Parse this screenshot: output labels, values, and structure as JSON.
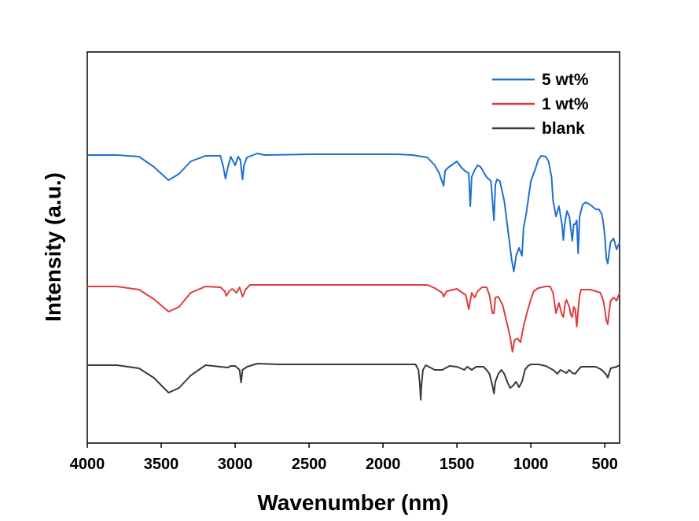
{
  "chart_data": {
    "type": "line",
    "xlabel": "Wavenumber (nm)",
    "ylabel": "Intensity (a.u.)",
    "xlim": [
      4000,
      400
    ],
    "x_reversed": true,
    "x_ticks": [
      4000,
      3500,
      3000,
      2500,
      2000,
      1500,
      1000,
      500
    ],
    "y_ticks_shown": false,
    "legend_position": "top-right",
    "grid": false,
    "series": [
      {
        "name": "5 wt%",
        "color": "#1f6fd1",
        "points": [
          [
            4000,
            197
          ],
          [
            3800,
            197
          ],
          [
            3650,
            199
          ],
          [
            3550,
            212
          ],
          [
            3450,
            229
          ],
          [
            3380,
            221
          ],
          [
            3300,
            205
          ],
          [
            3200,
            198
          ],
          [
            3100,
            198
          ],
          [
            3080,
            212
          ],
          [
            3065,
            227
          ],
          [
            3050,
            213
          ],
          [
            3030,
            199
          ],
          [
            3000,
            210
          ],
          [
            2980,
            199
          ],
          [
            2965,
            203
          ],
          [
            2950,
            228
          ],
          [
            2940,
            210
          ],
          [
            2920,
            200
          ],
          [
            2850,
            195
          ],
          [
            2800,
            197
          ],
          [
            2500,
            196
          ],
          [
            2200,
            196
          ],
          [
            1900,
            196
          ],
          [
            1800,
            197
          ],
          [
            1700,
            200
          ],
          [
            1650,
            210
          ],
          [
            1620,
            220
          ],
          [
            1600,
            231
          ],
          [
            1590,
            236
          ],
          [
            1580,
            217
          ],
          [
            1560,
            213
          ],
          [
            1500,
            205
          ],
          [
            1470,
            213
          ],
          [
            1440,
            218
          ],
          [
            1420,
            220
          ],
          [
            1410,
            262
          ],
          [
            1400,
            225
          ],
          [
            1380,
            216
          ],
          [
            1360,
            210
          ],
          [
            1340,
            212
          ],
          [
            1300,
            225
          ],
          [
            1270,
            230
          ],
          [
            1250,
            280
          ],
          [
            1240,
            235
          ],
          [
            1230,
            228
          ],
          [
            1210,
            230
          ],
          [
            1180,
            255
          ],
          [
            1150,
            300
          ],
          [
            1130,
            330
          ],
          [
            1115,
            345
          ],
          [
            1100,
            325
          ],
          [
            1080,
            315
          ],
          [
            1060,
            325
          ],
          [
            1050,
            290
          ],
          [
            1030,
            270
          ],
          [
            1000,
            230
          ],
          [
            970,
            215
          ],
          [
            950,
            203
          ],
          [
            930,
            198
          ],
          [
            900,
            199
          ],
          [
            880,
            205
          ],
          [
            860,
            225
          ],
          [
            850,
            255
          ],
          [
            840,
            265
          ],
          [
            830,
            275
          ],
          [
            810,
            262
          ],
          [
            790,
            285
          ],
          [
            780,
            305
          ],
          [
            770,
            283
          ],
          [
            755,
            268
          ],
          [
            740,
            275
          ],
          [
            730,
            290
          ],
          [
            720,
            306
          ],
          [
            710,
            285
          ],
          [
            700,
            285
          ],
          [
            690,
            280
          ],
          [
            680,
            322
          ],
          [
            670,
            275
          ],
          [
            650,
            260
          ],
          [
            630,
            257
          ],
          [
            600,
            260
          ],
          [
            560,
            266
          ],
          [
            540,
            266
          ],
          [
            520,
            272
          ],
          [
            510,
            283
          ],
          [
            500,
            300
          ],
          [
            490,
            328
          ],
          [
            480,
            335
          ],
          [
            470,
            320
          ],
          [
            460,
            307
          ],
          [
            440,
            303
          ],
          [
            420,
            317
          ],
          [
            410,
            312
          ],
          [
            400,
            309
          ]
        ]
      },
      {
        "name": "1 wt%",
        "color": "#e03c3c",
        "points": [
          [
            4000,
            364
          ],
          [
            3800,
            364
          ],
          [
            3650,
            368
          ],
          [
            3550,
            380
          ],
          [
            3450,
            396
          ],
          [
            3380,
            390
          ],
          [
            3300,
            372
          ],
          [
            3200,
            364
          ],
          [
            3100,
            365
          ],
          [
            3070,
            370
          ],
          [
            3060,
            376
          ],
          [
            3040,
            370
          ],
          [
            3020,
            367
          ],
          [
            2990,
            372
          ],
          [
            2970,
            365
          ],
          [
            2950,
            377
          ],
          [
            2930,
            368
          ],
          [
            2900,
            362
          ],
          [
            2800,
            362
          ],
          [
            2500,
            362
          ],
          [
            2000,
            362
          ],
          [
            1700,
            362
          ],
          [
            1650,
            366
          ],
          [
            1600,
            372
          ],
          [
            1590,
            377
          ],
          [
            1570,
            370
          ],
          [
            1500,
            367
          ],
          [
            1440,
            375
          ],
          [
            1420,
            393
          ],
          [
            1400,
            372
          ],
          [
            1380,
            378
          ],
          [
            1360,
            370
          ],
          [
            1330,
            365
          ],
          [
            1300,
            365
          ],
          [
            1280,
            375
          ],
          [
            1260,
            398
          ],
          [
            1250,
            398
          ],
          [
            1240,
            378
          ],
          [
            1220,
            377
          ],
          [
            1190,
            388
          ],
          [
            1160,
            412
          ],
          [
            1140,
            428
          ],
          [
            1125,
            447
          ],
          [
            1110,
            432
          ],
          [
            1090,
            430
          ],
          [
            1070,
            435
          ],
          [
            1050,
            415
          ],
          [
            1030,
            400
          ],
          [
            1000,
            380
          ],
          [
            980,
            370
          ],
          [
            950,
            366
          ],
          [
            900,
            364
          ],
          [
            870,
            364
          ],
          [
            850,
            372
          ],
          [
            830,
            398
          ],
          [
            810,
            385
          ],
          [
            790,
            400
          ],
          [
            780,
            403
          ],
          [
            770,
            388
          ],
          [
            760,
            381
          ],
          [
            740,
            390
          ],
          [
            730,
            400
          ],
          [
            720,
            403
          ],
          [
            710,
            390
          ],
          [
            700,
            393
          ],
          [
            690,
            415
          ],
          [
            680,
            395
          ],
          [
            670,
            375
          ],
          [
            660,
            368
          ],
          [
            600,
            368
          ],
          [
            560,
            370
          ],
          [
            530,
            372
          ],
          [
            510,
            382
          ],
          [
            500,
            393
          ],
          [
            490,
            407
          ],
          [
            480,
            412
          ],
          [
            470,
            395
          ],
          [
            460,
            382
          ],
          [
            440,
            378
          ],
          [
            420,
            382
          ],
          [
            400,
            372
          ]
        ]
      },
      {
        "name": "blank",
        "color": "#3a3a3a",
        "points": [
          [
            4000,
            464
          ],
          [
            3800,
            464
          ],
          [
            3650,
            468
          ],
          [
            3550,
            480
          ],
          [
            3450,
            499
          ],
          [
            3380,
            493
          ],
          [
            3300,
            477
          ],
          [
            3200,
            464
          ],
          [
            3100,
            466
          ],
          [
            3050,
            467
          ],
          [
            3030,
            465
          ],
          [
            3000,
            465
          ],
          [
            2970,
            470
          ],
          [
            2960,
            486
          ],
          [
            2950,
            470
          ],
          [
            2920,
            466
          ],
          [
            2850,
            462
          ],
          [
            2700,
            463
          ],
          [
            2500,
            463
          ],
          [
            2200,
            463
          ],
          [
            2000,
            463
          ],
          [
            1780,
            463
          ],
          [
            1760,
            470
          ],
          [
            1750,
            490
          ],
          [
            1745,
            508
          ],
          [
            1740,
            490
          ],
          [
            1730,
            470
          ],
          [
            1710,
            464
          ],
          [
            1650,
            470
          ],
          [
            1600,
            470
          ],
          [
            1550,
            465
          ],
          [
            1500,
            466
          ],
          [
            1450,
            470
          ],
          [
            1430,
            466
          ],
          [
            1400,
            470
          ],
          [
            1370,
            466
          ],
          [
            1320,
            466
          ],
          [
            1300,
            470
          ],
          [
            1280,
            475
          ],
          [
            1260,
            490
          ],
          [
            1250,
            500
          ],
          [
            1240,
            485
          ],
          [
            1220,
            475
          ],
          [
            1200,
            470
          ],
          [
            1180,
            475
          ],
          [
            1160,
            485
          ],
          [
            1140,
            493
          ],
          [
            1120,
            490
          ],
          [
            1100,
            485
          ],
          [
            1080,
            492
          ],
          [
            1060,
            485
          ],
          [
            1040,
            470
          ],
          [
            1020,
            465
          ],
          [
            1000,
            463
          ],
          [
            950,
            463
          ],
          [
            900,
            465
          ],
          [
            850,
            470
          ],
          [
            820,
            475
          ],
          [
            800,
            470
          ],
          [
            780,
            472
          ],
          [
            760,
            474
          ],
          [
            740,
            470
          ],
          [
            720,
            474
          ],
          [
            700,
            475
          ],
          [
            680,
            470
          ],
          [
            660,
            466
          ],
          [
            600,
            466
          ],
          [
            560,
            466
          ],
          [
            520,
            470
          ],
          [
            500,
            474
          ],
          [
            490,
            476
          ],
          [
            480,
            480
          ],
          [
            470,
            474
          ],
          [
            460,
            468
          ],
          [
            420,
            466
          ],
          [
            400,
            464
          ]
        ]
      }
    ]
  }
}
